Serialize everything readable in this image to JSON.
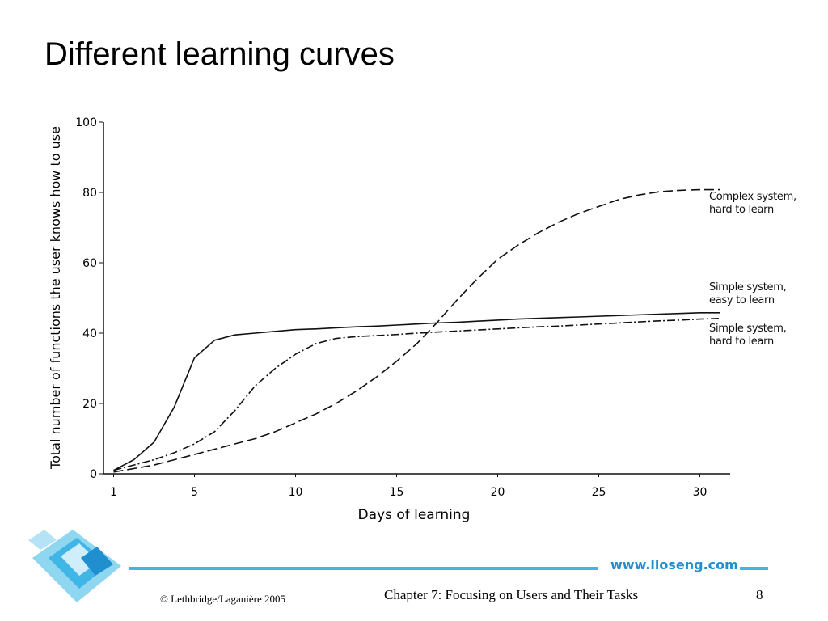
{
  "slide_title": "Different learning curves",
  "chart_data": {
    "type": "line",
    "x_label": "Days of learning",
    "y_label": "Total number of functions the user knows how to use",
    "x": [
      1,
      2,
      3,
      4,
      5,
      6,
      7,
      8,
      9,
      10,
      11,
      12,
      13,
      14,
      15,
      16,
      17,
      18,
      19,
      20,
      21,
      22,
      23,
      24,
      25,
      26,
      27,
      28,
      29,
      30,
      31
    ],
    "series": [
      {
        "name": "Complex system, hard to learn",
        "color": "#111111",
        "line_style": "dashed",
        "values": [
          0.5,
          1.5,
          2.5,
          4,
          5.5,
          7,
          8.5,
          10,
          12,
          14.5,
          17,
          20,
          23.5,
          27.5,
          32,
          37,
          43,
          49.5,
          55.5,
          61,
          65,
          68.5,
          71.5,
          74,
          76,
          78,
          79.3,
          80.2,
          80.6,
          80.8,
          80.8
        ]
      },
      {
        "name": "Simple system, easy to learn",
        "color": "#111111",
        "line_style": "solid",
        "values": [
          1,
          4,
          9,
          19,
          33,
          38,
          39.5,
          40,
          40.5,
          41,
          41.2,
          41.5,
          41.8,
          42,
          42.3,
          42.6,
          42.9,
          43.1,
          43.4,
          43.7,
          44,
          44.2,
          44.4,
          44.6,
          44.8,
          45,
          45.2,
          45.4,
          45.6,
          45.8,
          45.8
        ]
      },
      {
        "name": "Simple system, hard to learn",
        "color": "#111111",
        "line_style": "dashdot",
        "values": [
          1,
          2.5,
          4,
          6,
          8.5,
          12,
          18,
          25,
          30,
          34,
          37,
          38.5,
          39,
          39.3,
          39.6,
          40,
          40.3,
          40.6,
          40.9,
          41.2,
          41.5,
          41.8,
          42,
          42.3,
          42.6,
          42.9,
          43.2,
          43.5,
          43.7,
          44,
          44.2
        ]
      }
    ],
    "xlim": [
      0.5,
      31.5
    ],
    "xticks": [
      1,
      5,
      10,
      15,
      20,
      25,
      30
    ],
    "ylim": [
      0,
      100
    ],
    "yticks": [
      0,
      20,
      40,
      60,
      80,
      100
    ],
    "grid": false
  },
  "footer": {
    "copyright": "© Lethbridge/Laganière 2005",
    "chapter": "Chapter 7: Focusing on Users and Their Tasks",
    "page": "8",
    "site": "www.lloseng.com"
  }
}
